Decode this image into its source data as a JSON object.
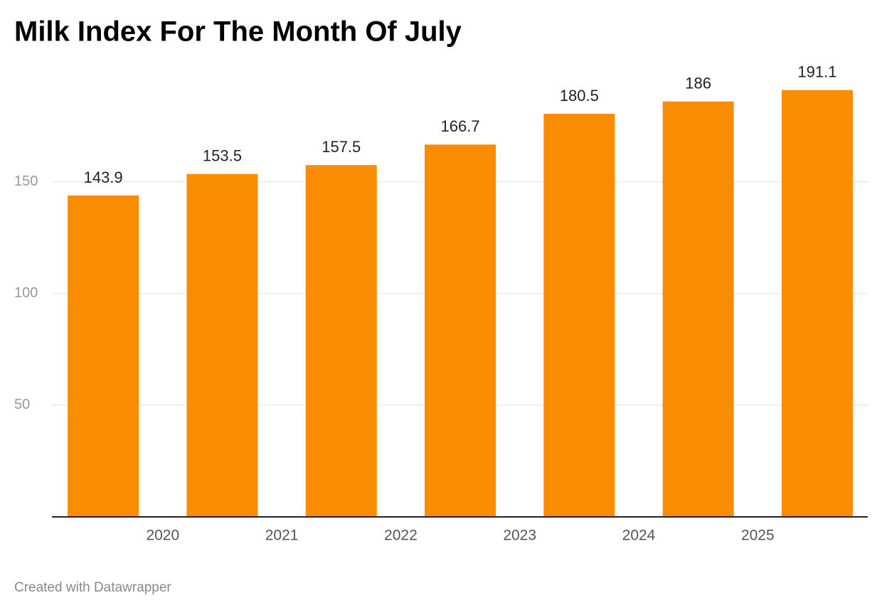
{
  "chart_data": {
    "type": "bar",
    "title": "Milk Index For The Month Of July",
    "categories": [
      null,
      "2020",
      "2021",
      "2022",
      "2023",
      "2024",
      "2025"
    ],
    "values": [
      143.9,
      153.5,
      157.5,
      166.7,
      180.5,
      186,
      191.1
    ],
    "color": "#f98c00",
    "ylim": [
      0,
      205
    ],
    "yticks": [
      50,
      100,
      150
    ],
    "grid": true,
    "footer": "Created with Datawrapper"
  }
}
